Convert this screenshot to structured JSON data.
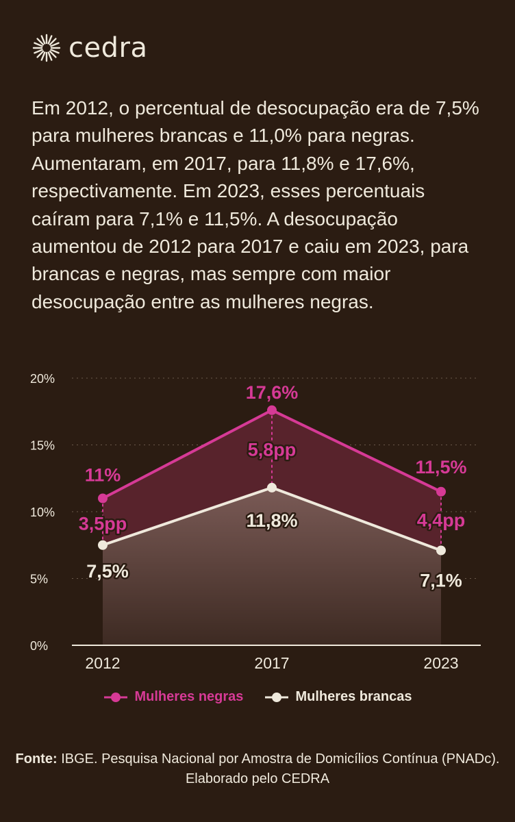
{
  "brand": {
    "name": "cedra",
    "icon": "sun-burst-icon"
  },
  "intro_text": "Em 2012, o percentual de desocupação era de 7,5% para mulheres brancas e 11,0% para negras. Aumentaram, em 2017, para 11,8% e 17,6%, respectivamente. Em 2023, esses percentuais caíram para 7,1% e 11,5%. A desocupação aumentou de 2012 para 2017 e caiu em 2023, para brancas e negras, mas sempre com maior desocupação entre as mulheres negras.",
  "colors": {
    "background": "#2b1c12",
    "negras": "#d63a96",
    "brancas": "#efe9dc",
    "text": "#efe9dc"
  },
  "chart_data": {
    "type": "area",
    "categories": [
      "2012",
      "2017",
      "2023"
    ],
    "ylim": [
      0,
      20
    ],
    "yticks": [
      0,
      5,
      10,
      15,
      20
    ],
    "ytick_labels": [
      "0%",
      "5%",
      "10%",
      "15%",
      "20%"
    ],
    "grid": true,
    "legend_position": "bottom",
    "series": [
      {
        "name": "Mulheres negras",
        "values": [
          11.0,
          17.6,
          11.5
        ],
        "labels": [
          "11%",
          "17,6%",
          "11,5%"
        ]
      },
      {
        "name": "Mulheres brancas",
        "values": [
          7.5,
          11.8,
          7.1
        ],
        "labels": [
          "7,5%",
          "11,8%",
          "7,1%"
        ]
      }
    ],
    "gaps": [
      "3,5pp",
      "5,8pp",
      "4,4pp"
    ]
  },
  "source": {
    "label": "Fonte:",
    "text": "IBGE. Pesquisa Nacional por Amostra de Domicílios Contínua (PNADc). Elaborado pelo CEDRA"
  }
}
